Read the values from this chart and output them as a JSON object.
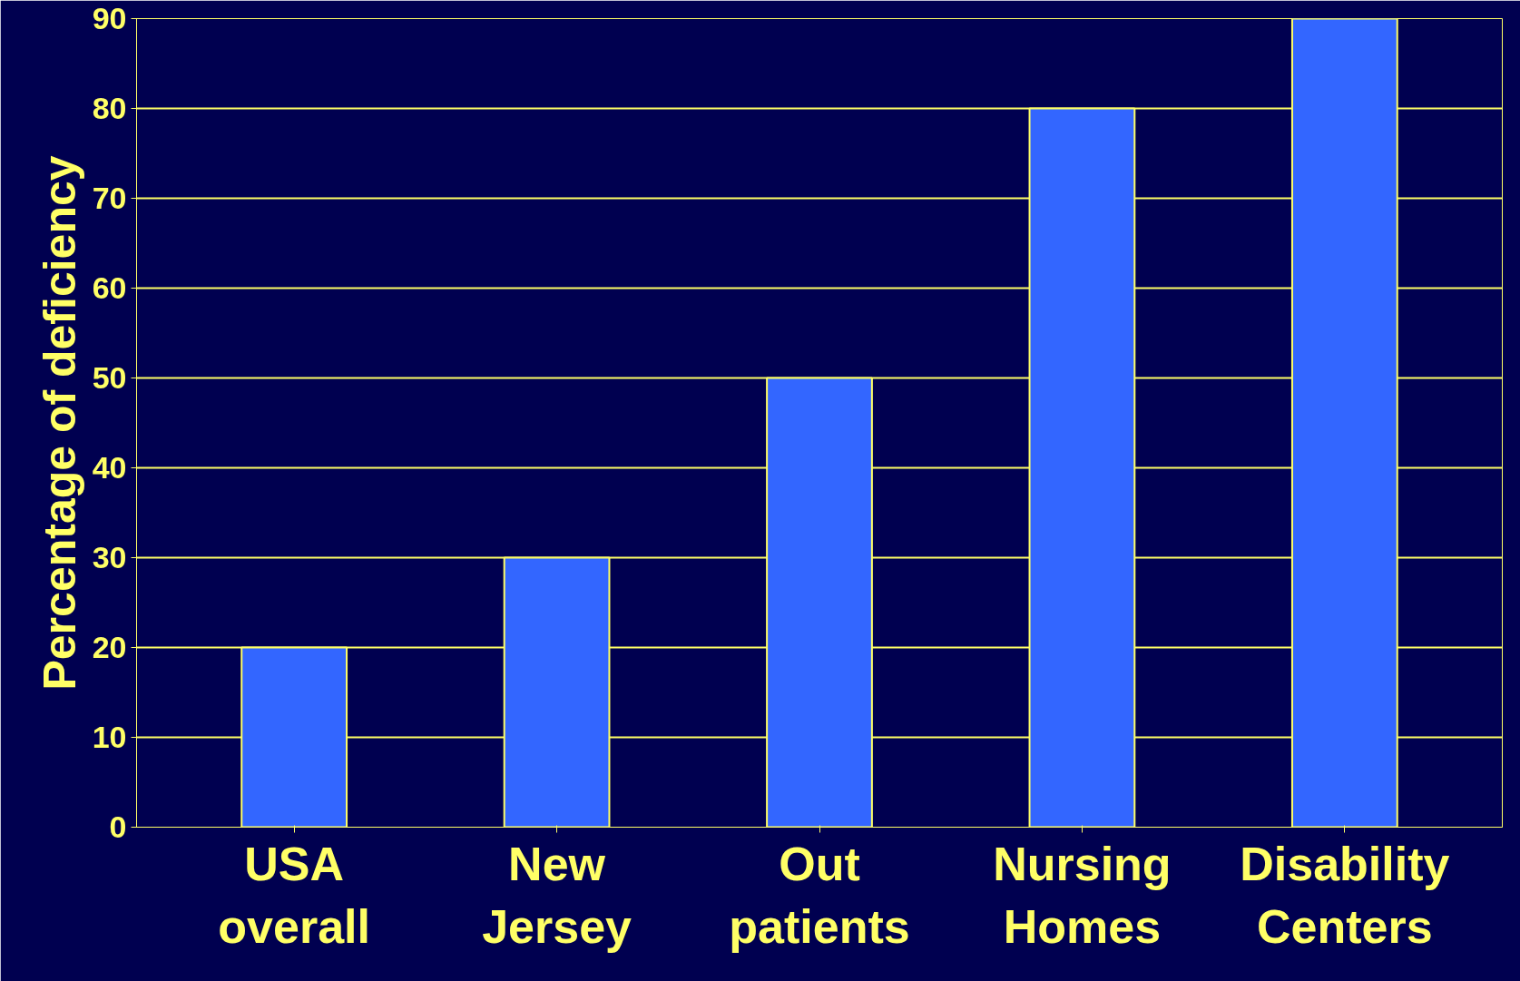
{
  "chart_data": {
    "type": "bar",
    "ylabel": "Percentage of deficiency",
    "categories": [
      "USA\noverall",
      "New\nJersey",
      "Out\npatients",
      "Nursing\nHomes",
      "Disability\nCenters"
    ],
    "values": [
      20,
      30,
      50,
      80,
      90
    ],
    "color": "#3366ff",
    "ylim": [
      0,
      90
    ],
    "yticks": [
      0,
      10,
      20,
      30,
      40,
      50,
      60,
      70,
      80,
      90
    ],
    "grid": "y"
  }
}
